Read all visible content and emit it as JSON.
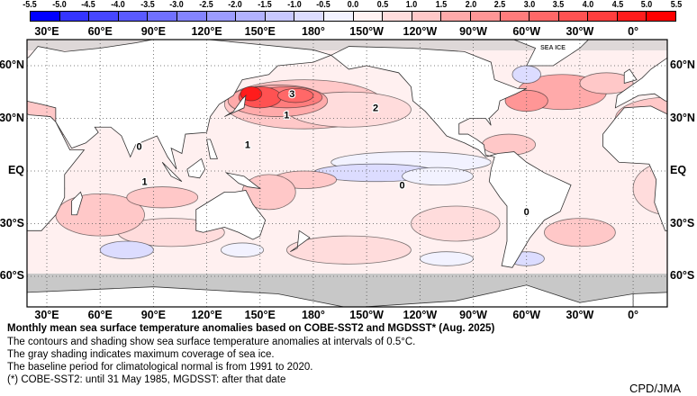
{
  "colorbar": {
    "labels": [
      "-5.5",
      "-5.0",
      "-4.5",
      "-4.0",
      "-3.5",
      "-3.0",
      "-2.5",
      "-2.0",
      "-1.5",
      "-1.0",
      "-0.5",
      "0.0",
      "0.5",
      "1.0",
      "1.5",
      "2.0",
      "2.5",
      "3.0",
      "3.5",
      "4.0",
      "4.5",
      "5.0",
      "5.5"
    ],
    "colors": [
      "#0000ff",
      "#3434ff",
      "#4646ff",
      "#5a5aff",
      "#7070ff",
      "#8484ff",
      "#9c9cff",
      "#b2b2ff",
      "#c8c8ff",
      "#dcdcff",
      "#f2f2ff",
      "#fff2f2",
      "#ffdcdc",
      "#ffc8c8",
      "#ffaaaa",
      "#ff9696",
      "#ff7c7c",
      "#ff6868",
      "#ff5252",
      "#ff3e3e",
      "#ff1c1c",
      "#ff0000"
    ]
  },
  "axes": {
    "lon_labels": [
      "30°E",
      "60°E",
      "90°E",
      "120°E",
      "150°E",
      "180°",
      "150°W",
      "120°W",
      "90°W",
      "60°W",
      "30°W",
      "0°"
    ],
    "lat_labels": [
      "60°N",
      "30°N",
      "EQ",
      "30°S",
      "60°S"
    ]
  },
  "map": {
    "sea_ice_label": "SEA ICE",
    "contour_labels": [
      "3",
      "1",
      "2",
      "0",
      "1",
      "1",
      "0",
      "0"
    ],
    "colors": {
      "land": "#ffffff",
      "sea_ice": "#c8c8c8",
      "ocean_base": "#fff0f0"
    }
  },
  "caption": {
    "title": "Monthly mean sea surface temperature anomalies based on COBE-SST2 and MGDSST* (Aug. 2025)",
    "lines": [
      "The contours and shading show sea surface temperature anomalies at intervals of 0.5°C.",
      "The gray shading indicates maximum coverage of sea ice.",
      "The baseline period for climatological normal is from 1991 to 2020.",
      "(*) COBE-SST2: until 31 May 1985, MGDSST: after that date"
    ]
  },
  "credit": "CPD/JMA"
}
